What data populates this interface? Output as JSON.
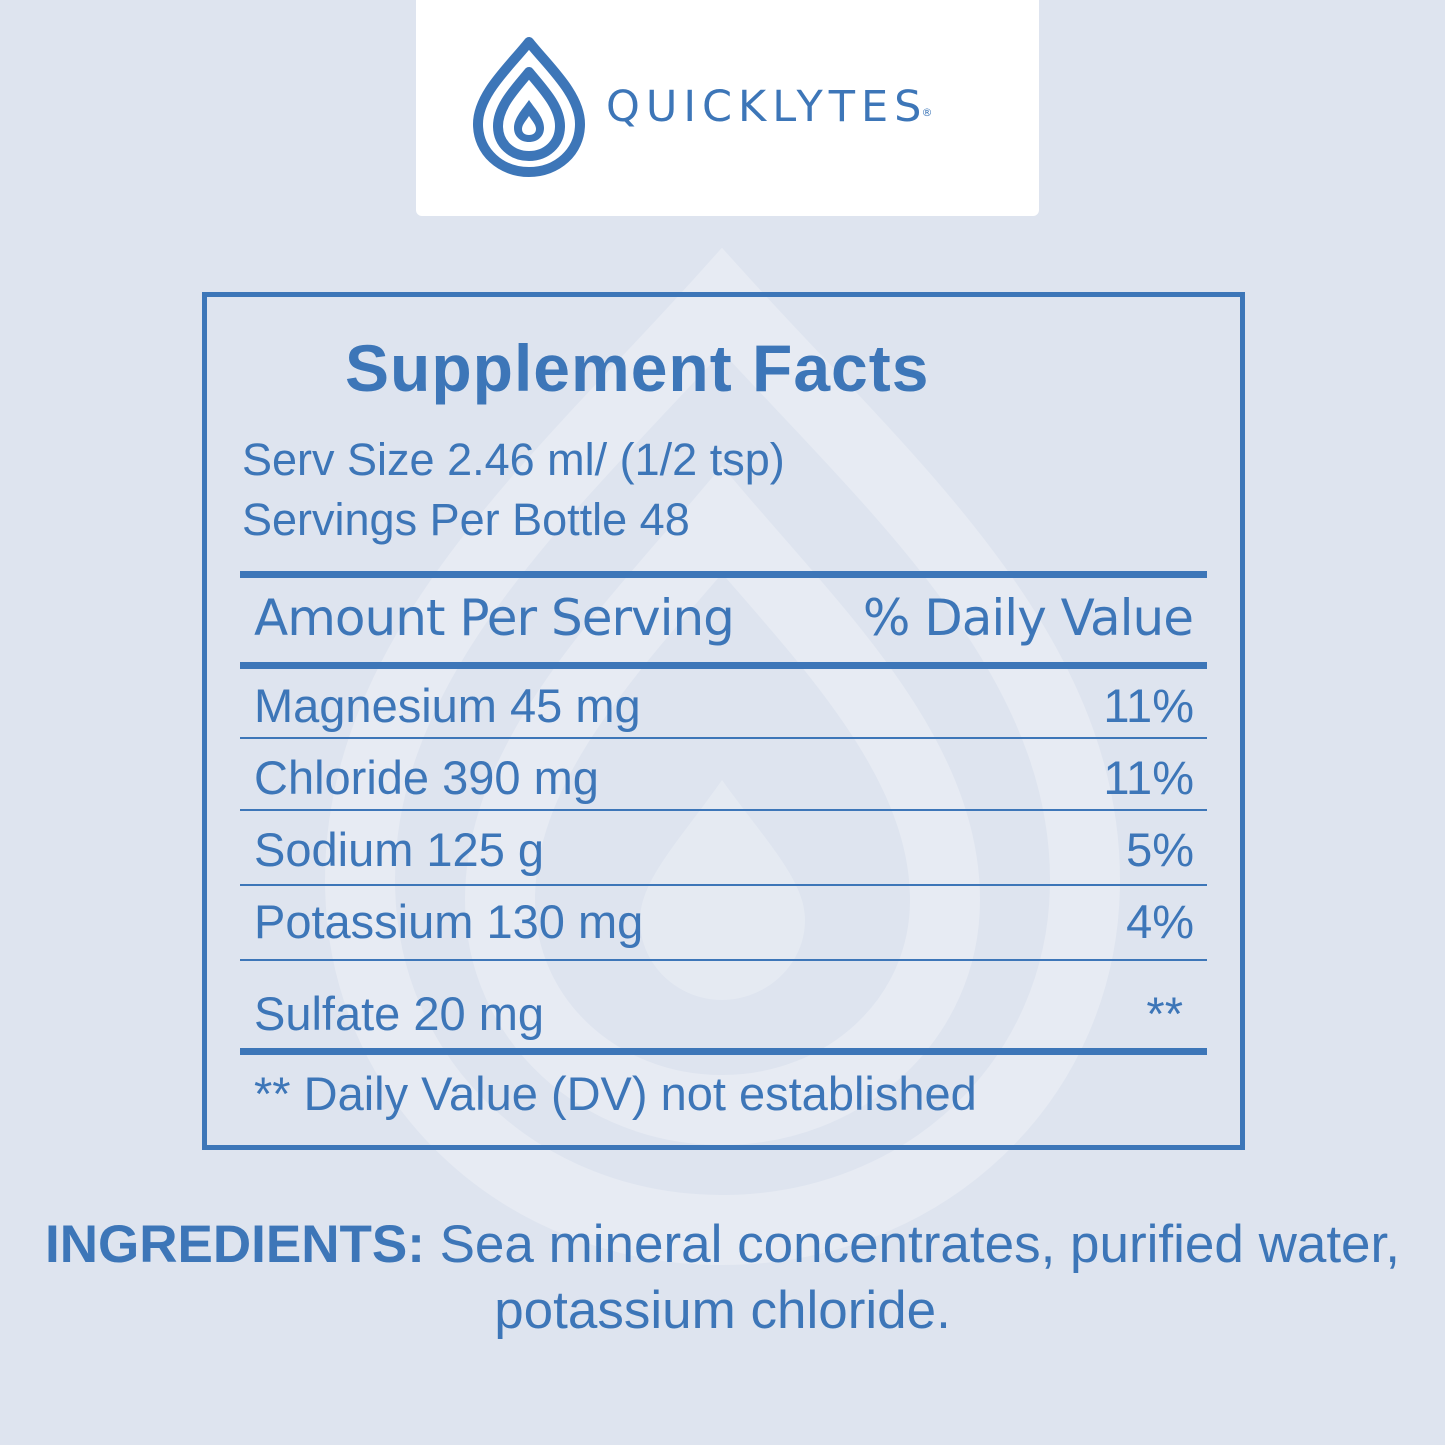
{
  "brand": {
    "name": "QUICKLYTES",
    "registered_mark": "®",
    "logo_icon": "water-drop-logo-icon",
    "color": "#3d76b8"
  },
  "colors": {
    "background": "#dee4ef",
    "accent": "#3d76b8",
    "card": "#ffffff"
  },
  "facts": {
    "title": "Supplement Facts",
    "serving_size": "Serv Size 2.46 ml/ (1/2 tsp)",
    "servings_per_container": "Servings Per Bottle 48",
    "col_amount": "Amount Per Serving",
    "col_dv": "% Daily Value",
    "rows": [
      {
        "name": "Magnesium 45 mg",
        "dv": "11%"
      },
      {
        "name": "Chloride 390 mg",
        "dv": "11%"
      },
      {
        "name": "Sodium 125 g",
        "dv": "5%"
      },
      {
        "name": "Potassium 130 mg",
        "dv": "4%"
      },
      {
        "name": "Sulfate 20 mg",
        "dv": "**"
      }
    ],
    "footnote": "** Daily Value (DV) not established"
  },
  "ingredients": {
    "label": "INGREDIENTS:",
    "text": " Sea mineral concentrates, purified water, potassium chloride."
  }
}
